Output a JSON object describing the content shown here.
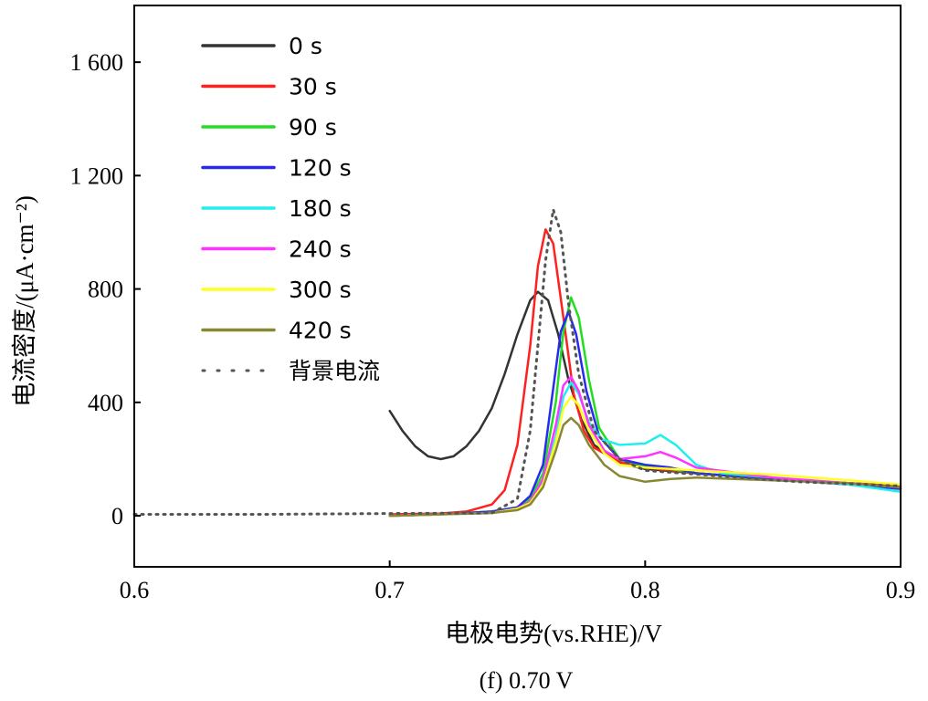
{
  "chart_data": {
    "type": "line",
    "caption": "(f) 0.70 V",
    "xlabel": "电极电势(vs.RHE)/V",
    "ylabel": "电流密度/(μA·cm⁻²)",
    "xlim": [
      0.6,
      0.9
    ],
    "ylim": [
      -180,
      1800
    ],
    "x_ticks": [
      "0.6",
      "0.7",
      "0.8",
      "0.9"
    ],
    "y_ticks": [
      "0",
      "400",
      "800",
      "1 200",
      "1 600"
    ],
    "x_tick_values": [
      0.6,
      0.7,
      0.8,
      0.9
    ],
    "y_tick_values": [
      0,
      400,
      800,
      1200,
      1600
    ],
    "legend_position": "top-left",
    "grid": false,
    "series": [
      {
        "name": "0 s",
        "color": "#333333",
        "style": "solid",
        "points": [
          [
            0.7,
            370
          ],
          [
            0.705,
            300
          ],
          [
            0.71,
            245
          ],
          [
            0.715,
            210
          ],
          [
            0.72,
            200
          ],
          [
            0.725,
            210
          ],
          [
            0.73,
            245
          ],
          [
            0.735,
            300
          ],
          [
            0.74,
            380
          ],
          [
            0.745,
            500
          ],
          [
            0.75,
            640
          ],
          [
            0.755,
            760
          ],
          [
            0.758,
            790
          ],
          [
            0.762,
            760
          ],
          [
            0.766,
            640
          ],
          [
            0.77,
            480
          ],
          [
            0.775,
            340
          ],
          [
            0.78,
            250
          ],
          [
            0.79,
            185
          ],
          [
            0.8,
            165
          ],
          [
            0.82,
            150
          ],
          [
            0.85,
            130
          ],
          [
            0.88,
            115
          ],
          [
            0.9,
            105
          ]
        ]
      },
      {
        "name": "30 s",
        "color": "#ff2020",
        "style": "solid",
        "points": [
          [
            0.7,
            5
          ],
          [
            0.72,
            8
          ],
          [
            0.73,
            15
          ],
          [
            0.74,
            40
          ],
          [
            0.745,
            90
          ],
          [
            0.75,
            250
          ],
          [
            0.755,
            600
          ],
          [
            0.758,
            880
          ],
          [
            0.761,
            1010
          ],
          [
            0.764,
            960
          ],
          [
            0.768,
            700
          ],
          [
            0.772,
            430
          ],
          [
            0.776,
            300
          ],
          [
            0.78,
            240
          ],
          [
            0.79,
            190
          ],
          [
            0.8,
            170
          ],
          [
            0.82,
            150
          ],
          [
            0.85,
            130
          ],
          [
            0.88,
            115
          ],
          [
            0.9,
            105
          ]
        ]
      },
      {
        "name": "90 s",
        "color": "#22dd22",
        "style": "solid",
        "points": [
          [
            0.7,
            0
          ],
          [
            0.72,
            5
          ],
          [
            0.74,
            15
          ],
          [
            0.75,
            30
          ],
          [
            0.755,
            60
          ],
          [
            0.76,
            150
          ],
          [
            0.765,
            400
          ],
          [
            0.768,
            650
          ],
          [
            0.771,
            770
          ],
          [
            0.774,
            700
          ],
          [
            0.778,
            480
          ],
          [
            0.782,
            310
          ],
          [
            0.79,
            200
          ],
          [
            0.8,
            175
          ],
          [
            0.81,
            165
          ],
          [
            0.82,
            150
          ],
          [
            0.85,
            130
          ],
          [
            0.88,
            115
          ],
          [
            0.9,
            95
          ]
        ]
      },
      {
        "name": "120 s",
        "color": "#2a2aee",
        "style": "solid",
        "points": [
          [
            0.7,
            0
          ],
          [
            0.72,
            5
          ],
          [
            0.74,
            15
          ],
          [
            0.75,
            30
          ],
          [
            0.755,
            70
          ],
          [
            0.76,
            180
          ],
          [
            0.764,
            450
          ],
          [
            0.767,
            650
          ],
          [
            0.77,
            720
          ],
          [
            0.773,
            640
          ],
          [
            0.777,
            440
          ],
          [
            0.782,
            280
          ],
          [
            0.79,
            200
          ],
          [
            0.8,
            180
          ],
          [
            0.81,
            170
          ],
          [
            0.82,
            150
          ],
          [
            0.85,
            130
          ],
          [
            0.88,
            110
          ],
          [
            0.9,
            95
          ]
        ]
      },
      {
        "name": "180 s",
        "color": "#22eeee",
        "style": "solid",
        "points": [
          [
            0.7,
            0
          ],
          [
            0.72,
            5
          ],
          [
            0.74,
            10
          ],
          [
            0.75,
            25
          ],
          [
            0.755,
            50
          ],
          [
            0.76,
            120
          ],
          [
            0.765,
            280
          ],
          [
            0.768,
            420
          ],
          [
            0.771,
            470
          ],
          [
            0.774,
            430
          ],
          [
            0.778,
            330
          ],
          [
            0.783,
            270
          ],
          [
            0.79,
            250
          ],
          [
            0.8,
            255
          ],
          [
            0.806,
            285
          ],
          [
            0.812,
            250
          ],
          [
            0.82,
            180
          ],
          [
            0.83,
            150
          ],
          [
            0.85,
            135
          ],
          [
            0.88,
            110
          ],
          [
            0.9,
            85
          ]
        ]
      },
      {
        "name": "240 s",
        "color": "#ff33ff",
        "style": "solid",
        "points": [
          [
            0.7,
            0
          ],
          [
            0.72,
            5
          ],
          [
            0.74,
            10
          ],
          [
            0.75,
            25
          ],
          [
            0.755,
            50
          ],
          [
            0.76,
            130
          ],
          [
            0.765,
            320
          ],
          [
            0.768,
            460
          ],
          [
            0.771,
            490
          ],
          [
            0.774,
            440
          ],
          [
            0.778,
            320
          ],
          [
            0.784,
            230
          ],
          [
            0.79,
            200
          ],
          [
            0.8,
            210
          ],
          [
            0.806,
            225
          ],
          [
            0.812,
            205
          ],
          [
            0.82,
            170
          ],
          [
            0.85,
            135
          ],
          [
            0.88,
            115
          ],
          [
            0.9,
            100
          ]
        ]
      },
      {
        "name": "300 s",
        "color": "#ffff22",
        "style": "solid",
        "points": [
          [
            0.7,
            0
          ],
          [
            0.72,
            5
          ],
          [
            0.74,
            10
          ],
          [
            0.75,
            25
          ],
          [
            0.755,
            45
          ],
          [
            0.76,
            110
          ],
          [
            0.765,
            260
          ],
          [
            0.768,
            380
          ],
          [
            0.771,
            420
          ],
          [
            0.774,
            390
          ],
          [
            0.778,
            300
          ],
          [
            0.784,
            220
          ],
          [
            0.79,
            180
          ],
          [
            0.8,
            170
          ],
          [
            0.81,
            165
          ],
          [
            0.82,
            160
          ],
          [
            0.85,
            145
          ],
          [
            0.88,
            125
          ],
          [
            0.9,
            110
          ]
        ]
      },
      {
        "name": "420 s",
        "color": "#888833",
        "style": "solid",
        "points": [
          [
            0.7,
            0
          ],
          [
            0.72,
            5
          ],
          [
            0.74,
            10
          ],
          [
            0.75,
            20
          ],
          [
            0.755,
            40
          ],
          [
            0.76,
            100
          ],
          [
            0.765,
            230
          ],
          [
            0.768,
            320
          ],
          [
            0.771,
            345
          ],
          [
            0.774,
            320
          ],
          [
            0.778,
            250
          ],
          [
            0.784,
            180
          ],
          [
            0.79,
            140
          ],
          [
            0.8,
            120
          ],
          [
            0.81,
            130
          ],
          [
            0.82,
            135
          ],
          [
            0.85,
            125
          ],
          [
            0.88,
            115
          ],
          [
            0.9,
            100
          ]
        ]
      },
      {
        "name": "背景电流",
        "color": "#555555",
        "style": "dotted",
        "points": [
          [
            0.6,
            5
          ],
          [
            0.65,
            5
          ],
          [
            0.7,
            8
          ],
          [
            0.74,
            10
          ],
          [
            0.75,
            60
          ],
          [
            0.755,
            300
          ],
          [
            0.758,
            600
          ],
          [
            0.761,
            900
          ],
          [
            0.764,
            1080
          ],
          [
            0.767,
            1000
          ],
          [
            0.77,
            750
          ],
          [
            0.774,
            500
          ],
          [
            0.78,
            300
          ],
          [
            0.79,
            200
          ],
          [
            0.8,
            160
          ],
          [
            0.83,
            140
          ],
          [
            0.86,
            120
          ],
          [
            0.9,
            105
          ]
        ]
      }
    ]
  }
}
